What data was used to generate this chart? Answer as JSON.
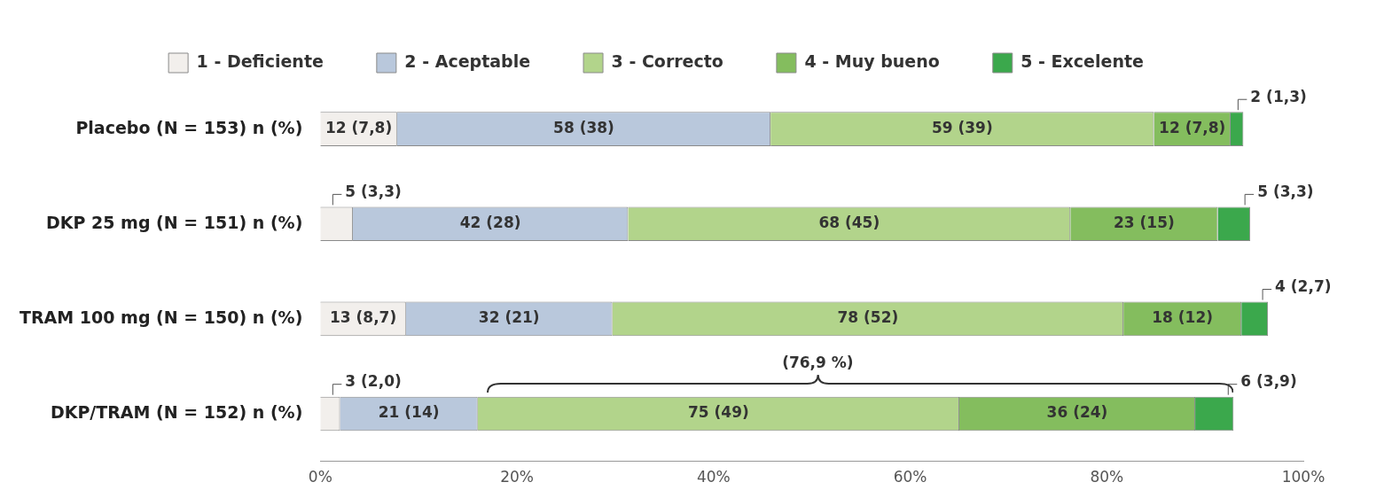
{
  "chart_data": {
    "type": "bar",
    "orientation": "horizontal",
    "stacked": true,
    "categories": [
      "Placebo (N = 153) n (%)",
      "DKP 25 mg (N = 151) n (%)",
      "TRAM 100 mg (N = 150) n (%)",
      "DKP/TRAM (N = 152) n (%)"
    ],
    "series": [
      {
        "name": "1 - Deficiente",
        "color": "#f2efec",
        "values": [
          7.8,
          3.3,
          8.7,
          2.0
        ],
        "value_labels": [
          "12 (7,8)",
          "5 (3,3)",
          "13 (8,7)",
          "3 (2,0)"
        ]
      },
      {
        "name": "2 - Aceptable",
        "color": "#b9c8dc",
        "values": [
          38,
          28,
          21,
          14
        ],
        "value_labels": [
          "58 (38)",
          "42 (28)",
          "32 (21)",
          "21 (14)"
        ]
      },
      {
        "name": "3 - Correcto",
        "color": "#b2d48b",
        "values": [
          39,
          45,
          52,
          49
        ],
        "value_labels": [
          "59 (39)",
          "68 (45)",
          "78 (52)",
          "75 (49)"
        ]
      },
      {
        "name": "4 - Muy bueno",
        "color": "#84bd5e",
        "values": [
          7.8,
          15,
          12,
          24
        ],
        "value_labels": [
          "12 (7,8)",
          "23 (15)",
          "18 (12)",
          "36 (24)"
        ]
      },
      {
        "name": "5 - Excelente",
        "color": "#3ba84c",
        "values": [
          1.3,
          3.3,
          2.7,
          3.9
        ],
        "value_labels": [
          "2 (1,3)",
          "5 (3,3)",
          "4 (2,7)",
          "6 (3,9)"
        ]
      }
    ],
    "xlim": [
      0,
      100
    ],
    "xticks": [
      {
        "value": 0,
        "label": "0%"
      },
      {
        "value": 20,
        "label": "20%"
      },
      {
        "value": 40,
        "label": "40%"
      },
      {
        "value": 60,
        "label": "60%"
      },
      {
        "value": 80,
        "label": "80%"
      },
      {
        "value": 100,
        "label": "100%"
      }
    ],
    "grid": false,
    "legend": "top",
    "annotations": [
      "(76,9 %)"
    ]
  }
}
